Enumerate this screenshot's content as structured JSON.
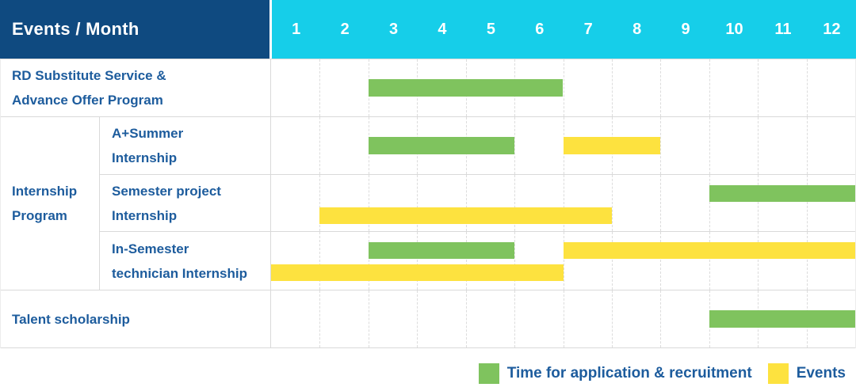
{
  "header": {
    "title": "Events / Month",
    "months": [
      "1",
      "2",
      "3",
      "4",
      "5",
      "6",
      "7",
      "8",
      "9",
      "10",
      "11",
      "12"
    ]
  },
  "table": {
    "group_label": "Internship\nProgram"
  },
  "colors": {
    "navy": "#0f4a80",
    "cyan": "#16cee9",
    "green": "#7fc35e",
    "yellow": "#fde23f",
    "text_blue": "#1d5c9d",
    "border": "#d9d9d9"
  },
  "chart_data": {
    "type": "bar",
    "subtype": "gantt-timeline",
    "title": "Events / Month",
    "x": {
      "label": "Month",
      "ticks": [
        1,
        2,
        3,
        4,
        5,
        6,
        7,
        8,
        9,
        10,
        11,
        12
      ],
      "range": [
        1,
        12
      ],
      "grid": "dashed-vertical"
    },
    "legend_position": "bottom-right",
    "legend": [
      {
        "name": "Time for application & recruitment",
        "color": "#7fc35e"
      },
      {
        "name": "Events",
        "color": "#fde23f"
      }
    ],
    "rows": [
      {
        "group": null,
        "label": "RD Substitute Service & Advance Offer Program",
        "display_label": "RD Substitute Service &\nAdvance Offer Program",
        "bars": [
          {
            "series": "Time for application & recruitment",
            "color": "#7fc35e",
            "start_month": 3,
            "end_month": 6,
            "lane": "center"
          }
        ]
      },
      {
        "group": "Internship Program",
        "label": "A+Summer Internship",
        "display_label": "A+Summer\nInternship",
        "bars": [
          {
            "series": "Time for application & recruitment",
            "color": "#7fc35e",
            "start_month": 3,
            "end_month": 5,
            "lane": "center"
          },
          {
            "series": "Events",
            "color": "#fde23f",
            "start_month": 7,
            "end_month": 8,
            "lane": "center"
          }
        ]
      },
      {
        "group": "Internship Program",
        "label": "Semester project Internship",
        "display_label": "Semester project\nInternship",
        "bars": [
          {
            "series": "Time for application & recruitment",
            "color": "#7fc35e",
            "start_month": 10,
            "end_month": 12,
            "lane": "upper"
          },
          {
            "series": "Events",
            "color": "#fde23f",
            "start_month": 2,
            "end_month": 7,
            "lane": "lower"
          }
        ]
      },
      {
        "group": "Internship Program",
        "label": "In-Semester technician Internship",
        "display_label": "In-Semester\ntechnician Internship",
        "bars": [
          {
            "series": "Time for application & recruitment",
            "color": "#7fc35e",
            "start_month": 3,
            "end_month": 5,
            "lane": "upper"
          },
          {
            "series": "Events",
            "color": "#fde23f",
            "start_month": 7,
            "end_month": 12,
            "lane": "upper"
          },
          {
            "series": "Events",
            "color": "#fde23f",
            "start_month": 1,
            "end_month": 6,
            "lane": "lower"
          }
        ]
      },
      {
        "group": null,
        "label": "Talent scholarship",
        "display_label": "Talent scholarship",
        "bars": [
          {
            "series": "Time for application & recruitment",
            "color": "#7fc35e",
            "start_month": 10,
            "end_month": 12,
            "lane": "center"
          }
        ]
      }
    ]
  }
}
